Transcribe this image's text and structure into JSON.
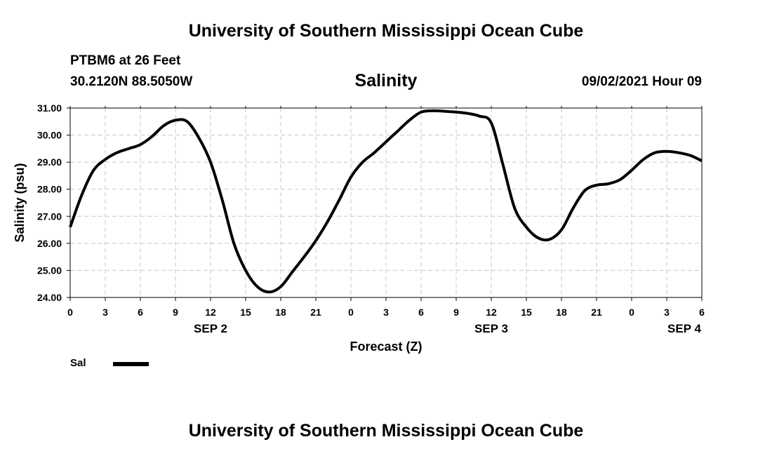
{
  "header": {
    "title": "University of Southern Mississippi Ocean Cube",
    "station": "PTBM6 at 26 Feet",
    "coords": "30.2120N  88.5050W",
    "variable": "Salinity",
    "timestamp": "09/02/2021 Hour 09"
  },
  "footer": {
    "title": "University of Southern Mississippi Ocean Cube"
  },
  "legend": {
    "label": "Sal",
    "color": "#000000"
  },
  "chart_data": {
    "type": "line",
    "title": "Salinity",
    "xlabel": "Forecast (Z)",
    "ylabel": "Salinity (psu)",
    "x_unit": "hours since SEP 2 00Z",
    "xlim": [
      0,
      54
    ],
    "ylim": [
      24.0,
      31.0
    ],
    "x_tick_labels": [
      "0",
      "3",
      "6",
      "9",
      "12",
      "15",
      "18",
      "21",
      "0",
      "3",
      "6",
      "9",
      "12",
      "15",
      "18",
      "21",
      "0",
      "3",
      "6"
    ],
    "y_tick_labels": [
      "24.00",
      "25.00",
      "26.00",
      "27.00",
      "28.00",
      "29.00",
      "30.00",
      "31.00"
    ],
    "date_labels": [
      {
        "at_hour": 12,
        "label": "SEP 2"
      },
      {
        "at_hour": 36,
        "label": "SEP 3"
      },
      {
        "at_hour": 52.5,
        "label": "SEP 4"
      }
    ],
    "grid": true,
    "series": [
      {
        "name": "Sal",
        "x": [
          0,
          1,
          2,
          3,
          4,
          5,
          6,
          7,
          8,
          9,
          10,
          11,
          12,
          13,
          14,
          15,
          16,
          17,
          18,
          19,
          20,
          21,
          22,
          23,
          24,
          25,
          26,
          27,
          28,
          29,
          30,
          31,
          32,
          33,
          34,
          35,
          36,
          37,
          38,
          39,
          40,
          41,
          42,
          43,
          44,
          45,
          46,
          47,
          48,
          49,
          50,
          51,
          52,
          53,
          54
        ],
        "y": [
          26.6,
          27.8,
          28.7,
          29.1,
          29.35,
          29.5,
          29.65,
          29.95,
          30.35,
          30.55,
          30.5,
          29.9,
          29.0,
          27.6,
          26.0,
          25.0,
          24.4,
          24.2,
          24.4,
          24.95,
          25.5,
          26.1,
          26.8,
          27.6,
          28.45,
          29.0,
          29.35,
          29.75,
          30.15,
          30.55,
          30.85,
          30.9,
          30.88,
          30.85,
          30.8,
          30.7,
          30.45,
          28.9,
          27.3,
          26.6,
          26.2,
          26.15,
          26.5,
          27.3,
          27.95,
          28.15,
          28.2,
          28.35,
          28.7,
          29.1,
          29.35,
          29.4,
          29.35,
          29.25,
          29.05
        ]
      }
    ]
  }
}
